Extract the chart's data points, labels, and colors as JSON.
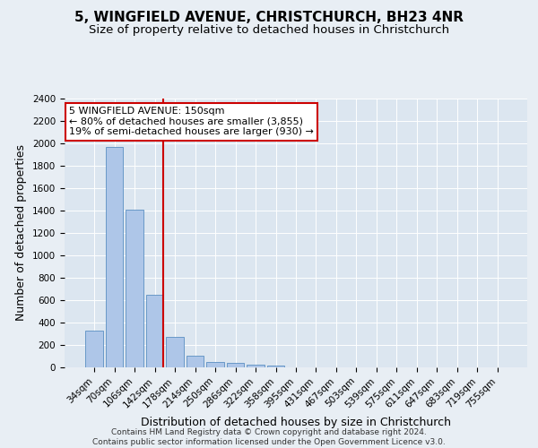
{
  "title1": "5, WINGFIELD AVENUE, CHRISTCHURCH, BH23 4NR",
  "title2": "Size of property relative to detached houses in Christchurch",
  "xlabel": "Distribution of detached houses by size in Christchurch",
  "ylabel": "Number of detached properties",
  "footnote1": "Contains HM Land Registry data © Crown copyright and database right 2024.",
  "footnote2": "Contains public sector information licensed under the Open Government Licence v3.0.",
  "categories": [
    "34sqm",
    "70sqm",
    "106sqm",
    "142sqm",
    "178sqm",
    "214sqm",
    "250sqm",
    "286sqm",
    "322sqm",
    "358sqm",
    "395sqm",
    "431sqm",
    "467sqm",
    "503sqm",
    "539sqm",
    "575sqm",
    "611sqm",
    "647sqm",
    "683sqm",
    "719sqm",
    "755sqm"
  ],
  "values": [
    325,
    1970,
    1405,
    650,
    275,
    105,
    48,
    38,
    28,
    20,
    0,
    0,
    0,
    0,
    0,
    0,
    0,
    0,
    0,
    0,
    0
  ],
  "bar_color": "#aec6e8",
  "bar_edge_color": "#5a8fc2",
  "vline_color": "#cc0000",
  "vline_pos": 3.43,
  "annotation_line1": "5 WINGFIELD AVENUE: 150sqm",
  "annotation_line2": "← 80% of detached houses are smaller (3,855)",
  "annotation_line3": "19% of semi-detached houses are larger (930) →",
  "annotation_box_color": "#ffffff",
  "annotation_box_edge": "#cc0000",
  "ylim": [
    0,
    2400
  ],
  "yticks": [
    0,
    200,
    400,
    600,
    800,
    1000,
    1200,
    1400,
    1600,
    1800,
    2000,
    2200,
    2400
  ],
  "bg_color": "#e8eef4",
  "plot_bg_color": "#dce6f0",
  "grid_color": "#ffffff",
  "title1_fontsize": 11,
  "title2_fontsize": 9.5,
  "xlabel_fontsize": 9,
  "ylabel_fontsize": 9,
  "tick_fontsize": 7.5,
  "annotation_fontsize": 8,
  "footnote_fontsize": 6.5
}
